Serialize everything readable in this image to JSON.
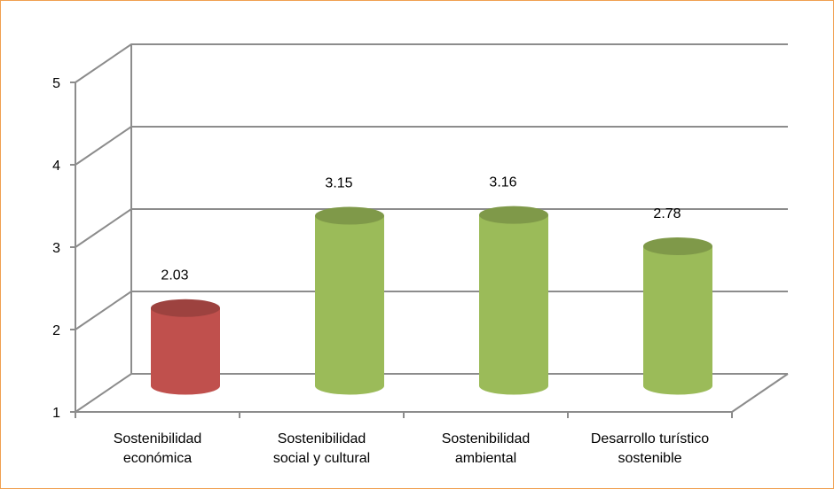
{
  "chart_data": {
    "type": "bar3d",
    "categories": [
      "Sostenibilidad\neconómica",
      "Sostenibilidad\nsocial y cultural",
      "Sostenibilidad\nambiental",
      "Desarrollo turístico\nsostenible"
    ],
    "values": [
      2.03,
      3.15,
      3.16,
      2.78
    ],
    "colors": [
      "#c0504d",
      "#9bbb59",
      "#9bbb59",
      "#9bbb59"
    ],
    "ylim": [
      1,
      5
    ],
    "yticks": [
      1,
      2,
      3,
      4,
      5
    ],
    "grid": true
  }
}
